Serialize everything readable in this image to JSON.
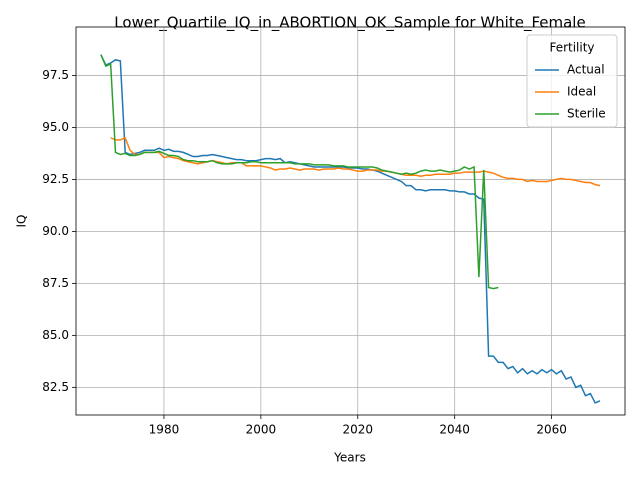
{
  "chart_data": {
    "type": "line",
    "title": "Lower_Quartile_IQ_in_ABORTION_OK_Sample for White_Female",
    "x_label": "Years",
    "y_label": "IQ",
    "legend_title": "Fertility",
    "legend": "upper right",
    "grid": true,
    "xlim": [
      1961.85,
      2075.15
    ],
    "ylim": [
      81.17,
      99.83
    ],
    "xticks": [
      1980,
      2000,
      2020,
      2040,
      2060
    ],
    "yticks": [
      82.5,
      {
        "value": 85,
        "label": "85.0"
      },
      87.5,
      {
        "value": 90,
        "label": "90.0"
      },
      92.5,
      {
        "value": 95,
        "label": "95.0"
      },
      97.5
    ],
    "x": [
      1967,
      1968,
      1969,
      1970,
      1971,
      1972,
      1973,
      1974,
      1975,
      1976,
      1977,
      1978,
      1979,
      1980,
      1981,
      1982,
      1983,
      1984,
      1985,
      1986,
      1987,
      1988,
      1989,
      1990,
      1991,
      1992,
      1993,
      1994,
      1995,
      1996,
      1997,
      1998,
      1999,
      2000,
      2001,
      2002,
      2003,
      2004,
      2005,
      2006,
      2007,
      2008,
      2009,
      2010,
      2011,
      2012,
      2013,
      2014,
      2015,
      2016,
      2017,
      2018,
      2019,
      2020,
      2021,
      2022,
      2023,
      2024,
      2025,
      2026,
      2027,
      2028,
      2029,
      2030,
      2031,
      2032,
      2033,
      2034,
      2035,
      2036,
      2037,
      2038,
      2039,
      2040,
      2041,
      2042,
      2043,
      2044,
      2045,
      2046,
      2047,
      2048,
      2049,
      2050,
      2051,
      2052,
      2053,
      2054,
      2055,
      2056,
      2057,
      2058,
      2059,
      2060,
      2061,
      2062,
      2063,
      2064,
      2065,
      2066,
      2067,
      2068,
      2069,
      2070
    ],
    "series": [
      {
        "name": "Actual",
        "color": "#1f77b4",
        "values": [
          98.5,
          98.0,
          98.1,
          98.25,
          98.2,
          93.8,
          93.7,
          93.75,
          93.8,
          93.9,
          93.9,
          93.9,
          94.0,
          93.9,
          93.95,
          93.85,
          93.85,
          93.8,
          93.7,
          93.6,
          93.6,
          93.65,
          93.65,
          93.7,
          93.65,
          93.6,
          93.55,
          93.5,
          93.45,
          93.45,
          93.4,
          93.4,
          93.4,
          93.45,
          93.5,
          93.5,
          93.45,
          93.5,
          93.3,
          93.35,
          93.3,
          93.25,
          93.2,
          93.15,
          93.1,
          93.1,
          93.1,
          93.1,
          93.1,
          93.1,
          93.1,
          93.05,
          93.05,
          93.05,
          93.0,
          93.0,
          92.95,
          92.9,
          92.8,
          92.7,
          92.6,
          92.5,
          92.4,
          92.2,
          92.2,
          92.0,
          92.0,
          91.95,
          92.0,
          92.0,
          92.0,
          92.0,
          91.95,
          91.95,
          91.9,
          91.9,
          91.8,
          91.8,
          91.6,
          91.55,
          84.0,
          84.0,
          83.7,
          83.7,
          83.4,
          83.5,
          83.2,
          83.4,
          83.15,
          83.3,
          83.15,
          83.35,
          83.2,
          83.35,
          83.15,
          83.3,
          82.9,
          83.0,
          82.5,
          82.6,
          82.1,
          82.2,
          81.75,
          81.85
        ]
      },
      {
        "name": "Ideal",
        "color": "#ff7f0e",
        "values": [
          null,
          null,
          94.5,
          94.4,
          94.4,
          94.5,
          93.9,
          93.7,
          93.7,
          93.8,
          93.8,
          93.8,
          93.8,
          93.55,
          93.6,
          93.55,
          93.5,
          93.4,
          93.35,
          93.3,
          93.25,
          93.3,
          93.35,
          93.4,
          93.35,
          93.3,
          93.25,
          93.3,
          93.3,
          93.3,
          93.15,
          93.15,
          93.15,
          93.15,
          93.1,
          93.05,
          92.95,
          93.0,
          93.0,
          93.05,
          93.0,
          92.95,
          93.0,
          93.0,
          93.0,
          92.95,
          93.0,
          93.0,
          93.0,
          93.05,
          93.0,
          93.0,
          92.95,
          92.9,
          92.9,
          92.95,
          92.95,
          92.95,
          92.9,
          92.9,
          92.85,
          92.8,
          92.75,
          92.7,
          92.7,
          92.7,
          92.65,
          92.7,
          92.7,
          92.75,
          92.75,
          92.75,
          92.75,
          92.8,
          92.8,
          92.85,
          92.85,
          92.85,
          92.85,
          92.9,
          92.85,
          92.8,
          92.7,
          92.6,
          92.55,
          92.55,
          92.5,
          92.5,
          92.4,
          92.45,
          92.4,
          92.4,
          92.4,
          92.45,
          92.5,
          92.55,
          92.5,
          92.5,
          92.45,
          92.4,
          92.35,
          92.35,
          92.25,
          92.2
        ]
      },
      {
        "name": "Sterile",
        "color": "#2ca02c",
        "values": [
          98.5,
          97.95,
          98.05,
          93.8,
          93.7,
          93.75,
          93.65,
          93.65,
          93.7,
          93.8,
          93.8,
          93.8,
          93.85,
          93.75,
          93.65,
          93.65,
          93.6,
          93.45,
          93.4,
          93.4,
          93.35,
          93.35,
          93.35,
          93.4,
          93.3,
          93.25,
          93.25,
          93.25,
          93.3,
          93.3,
          93.3,
          93.35,
          93.35,
          93.3,
          93.3,
          93.3,
          93.3,
          93.3,
          93.3,
          93.3,
          93.25,
          93.25,
          93.25,
          93.25,
          93.2,
          93.2,
          93.2,
          93.2,
          93.15,
          93.15,
          93.15,
          93.1,
          93.1,
          93.1,
          93.1,
          93.1,
          93.1,
          93.05,
          92.95,
          92.9,
          92.85,
          92.8,
          92.75,
          92.8,
          92.75,
          92.8,
          92.9,
          92.95,
          92.9,
          92.9,
          92.95,
          92.9,
          92.85,
          92.9,
          92.95,
          93.1,
          93.0,
          93.1,
          87.8,
          92.95,
          87.3,
          87.25,
          87.3,
          null,
          null,
          null,
          null,
          null,
          null,
          null,
          null,
          null,
          null,
          null,
          null,
          null,
          null,
          null,
          null,
          null,
          null,
          null,
          null,
          null
        ]
      }
    ]
  }
}
